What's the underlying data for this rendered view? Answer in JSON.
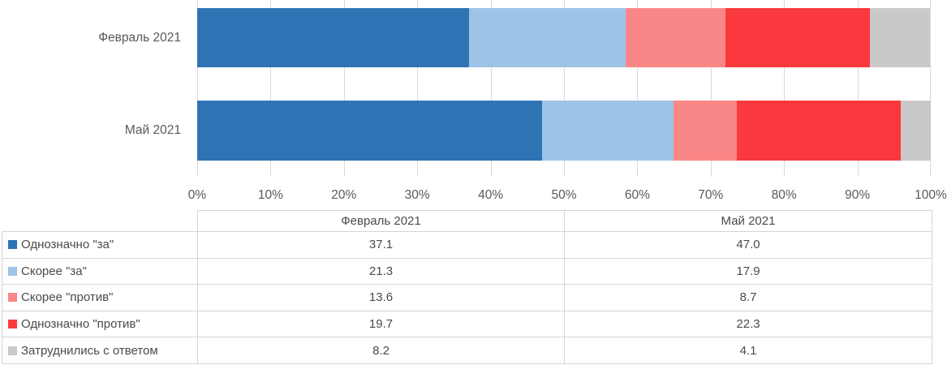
{
  "chart_data": {
    "type": "bar",
    "variant": "horizontal-stacked",
    "categories": [
      "Февраль 2021",
      "Май 2021"
    ],
    "series": [
      {
        "name": "Однозначно \"за\"",
        "color": "#2e74b5",
        "values": [
          37.1,
          47.0
        ]
      },
      {
        "name": "Скорее \"за\"",
        "color": "#9dc3e6",
        "values": [
          21.3,
          17.9
        ]
      },
      {
        "name": "Скорее \"против\"",
        "color": "#fa8787",
        "values": [
          13.6,
          8.7
        ]
      },
      {
        "name": "Однозначно \"против\"",
        "color": "#fa393e",
        "values": [
          19.7,
          22.3
        ]
      },
      {
        "name": "Затруднились с ответом",
        "color": "#c9c9c9",
        "values": [
          8.2,
          4.1
        ]
      }
    ],
    "xlabel": "",
    "ylabel": "",
    "xlim": [
      0,
      100
    ],
    "x_ticks": [
      "0%",
      "10%",
      "20%",
      "30%",
      "40%",
      "50%",
      "60%",
      "70%",
      "80%",
      "90%",
      "100%"
    ],
    "grid": true,
    "gridline_color": "#d9d9d9",
    "legend_position": "table-rows-left"
  },
  "table": {
    "col_headers": [
      "Февраль 2021",
      "Май 2021"
    ],
    "rows": [
      {
        "label": "Однозначно \"за\"",
        "feb": "37.1",
        "may": "47.0"
      },
      {
        "label": "Скорее \"за\"",
        "feb": "21.3",
        "may": "17.9"
      },
      {
        "label": "Скорее \"против\"",
        "feb": "13.6",
        "may": "8.7"
      },
      {
        "label": "Однозначно \"против\"",
        "feb": "19.7",
        "may": "22.3"
      },
      {
        "label": "Затруднились с ответом",
        "feb": "8.2",
        "may": "4.1"
      }
    ]
  }
}
